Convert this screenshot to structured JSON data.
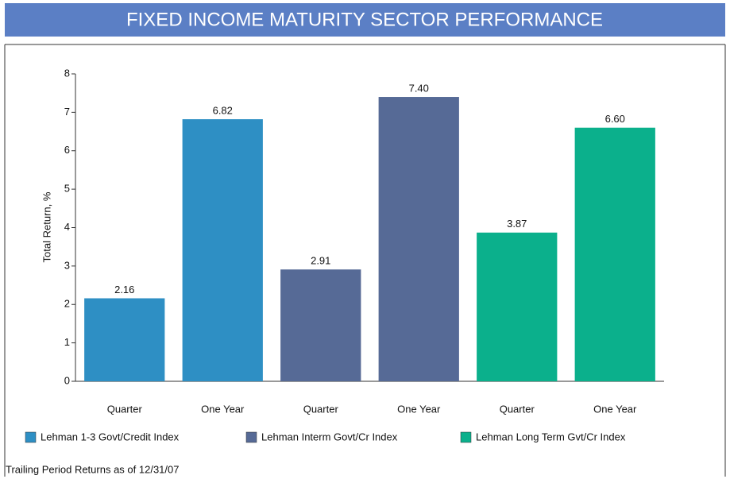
{
  "chart_data": {
    "type": "bar",
    "title": "FIXED INCOME MATURITY SECTOR PERFORMANCE",
    "y_label": "Total Return, %",
    "footnote": "Trailing Period Returns as of 12/31/07",
    "categories": [
      "Quarter",
      "One Year"
    ],
    "series": [
      {
        "name": "Lehman 1-3 Govt/Credit Index",
        "color": "#2e8fc4",
        "values": [
          2.16,
          6.82
        ],
        "value_labels": [
          "2.16",
          "6.82"
        ]
      },
      {
        "name": "Lehman Interm Govt/Cr Index",
        "color": "#566a96",
        "values": [
          2.91,
          7.4
        ],
        "value_labels": [
          "2.91",
          "7.40"
        ]
      },
      {
        "name": "Lehman Long Term Gvt/Cr Index",
        "color": "#0bb08c",
        "values": [
          3.87,
          6.6
        ],
        "value_labels": [
          "3.87",
          "6.60"
        ]
      }
    ],
    "ylim": [
      0,
      8
    ],
    "yticks": [
      0,
      1,
      2,
      3,
      4,
      5,
      6,
      7,
      8
    ],
    "legend": "bottom"
  }
}
